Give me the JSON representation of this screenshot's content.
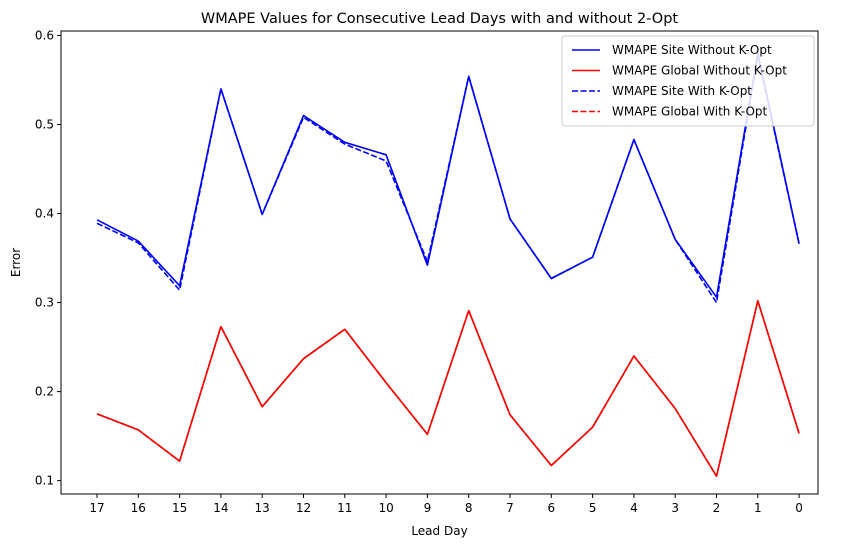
{
  "chart_data": {
    "type": "line",
    "title": "WMAPE Values for Consecutive Lead Days with and without 2-Opt",
    "xlabel": "Lead Day",
    "ylabel": "Error",
    "categories": [
      "17",
      "16",
      "15",
      "14",
      "13",
      "12",
      "11",
      "10",
      "9",
      "8",
      "7",
      "6",
      "5",
      "4",
      "3",
      "2",
      "1",
      "0"
    ],
    "ylim": [
      0.085,
      0.605
    ],
    "yticks": [
      0.1,
      0.2,
      0.3,
      0.4,
      0.5,
      0.6
    ],
    "grid": false,
    "legend_position": "upper right",
    "series": [
      {
        "name": "WMAPE Site Without K-Opt",
        "color": "#0000ff",
        "style": "solid",
        "values": [
          0.393,
          0.369,
          0.319,
          0.54,
          0.399,
          0.51,
          0.48,
          0.466,
          0.342,
          0.554,
          0.394,
          0.327,
          0.351,
          0.483,
          0.371,
          0.306,
          0.58,
          0.366
        ]
      },
      {
        "name": "WMAPE Global Without K-Opt",
        "color": "#ff0000",
        "style": "solid",
        "values": [
          0.175,
          0.157,
          0.122,
          0.273,
          0.183,
          0.237,
          0.27,
          0.21,
          0.152,
          0.291,
          0.174,
          0.117,
          0.16,
          0.24,
          0.181,
          0.105,
          0.302,
          0.153
        ]
      },
      {
        "name": "WMAPE Site With K-Opt",
        "color": "#0000ff",
        "style": "dashed",
        "values": [
          0.389,
          0.367,
          0.314,
          0.54,
          0.399,
          0.508,
          0.478,
          0.459,
          0.346,
          0.554,
          0.394,
          0.327,
          0.351,
          0.483,
          0.371,
          0.3,
          0.577,
          0.366
        ]
      },
      {
        "name": "WMAPE Global With K-Opt",
        "color": "#ff0000",
        "style": "dashed",
        "values": [
          0.175,
          0.157,
          0.122,
          0.273,
          0.183,
          0.237,
          0.27,
          0.21,
          0.152,
          0.291,
          0.174,
          0.117,
          0.16,
          0.24,
          0.181,
          0.105,
          0.302,
          0.153
        ]
      }
    ]
  }
}
